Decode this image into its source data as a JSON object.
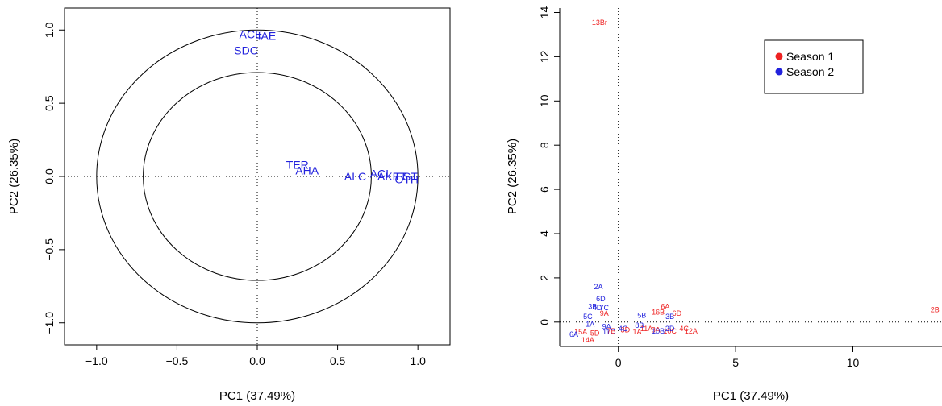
{
  "chart_data": [
    {
      "type": "scatter",
      "title": "",
      "xlabel": "PC1 (37.49%)",
      "ylabel": "PC2 (26.35%)",
      "xlim": [
        -1.2,
        1.2
      ],
      "ylim": [
        -1.15,
        1.15
      ],
      "xticks": [
        -1.0,
        -0.5,
        0.0,
        0.5,
        1.0
      ],
      "yticks": [
        -1.0,
        -0.5,
        0.0,
        0.5,
        1.0
      ],
      "xtick_labels": [
        "−1.0",
        "−0.5",
        "0.0",
        "0.5",
        "1.0"
      ],
      "ytick_labels": [
        "−1.0",
        "−0.5",
        "0.0",
        "0.5",
        "1.0"
      ],
      "circles": [
        1.0,
        0.71
      ],
      "reference_lines": {
        "x": 0,
        "y": 0,
        "style": "dotted"
      },
      "label_color": "#2222dd",
      "points": [
        {
          "label": "ACE",
          "x": -0.04,
          "y": 0.97
        },
        {
          "label": "IAE",
          "x": 0.06,
          "y": 0.96
        },
        {
          "label": "SDC",
          "x": -0.07,
          "y": 0.86
        },
        {
          "label": "TER",
          "x": 0.25,
          "y": 0.08
        },
        {
          "label": "AHA",
          "x": 0.31,
          "y": 0.04
        },
        {
          "label": "ALC",
          "x": 0.61,
          "y": 0.0
        },
        {
          "label": "ACI",
          "x": 0.76,
          "y": 0.02
        },
        {
          "label": "AKET",
          "x": 0.84,
          "y": 0.0
        },
        {
          "label": "EST",
          "x": 0.93,
          "y": 0.0
        },
        {
          "label": "OTH",
          "x": 0.93,
          "y": -0.02
        }
      ]
    },
    {
      "type": "scatter",
      "title": "",
      "xlabel": "PC1 (37.49%)",
      "ylabel": "PC2 (26.35%)",
      "xlim": [
        -2.5,
        13.8
      ],
      "ylim": [
        -1.1,
        14.2
      ],
      "xticks": [
        0,
        5,
        10
      ],
      "yticks": [
        0,
        2,
        4,
        6,
        8,
        10,
        12,
        14
      ],
      "reference_lines": {
        "x": 0,
        "y": 0,
        "style": "dotted"
      },
      "legend": {
        "placement": "top-right-inner"
      },
      "series": [
        {
          "name": "Season 1",
          "color": "#ee2222",
          "points": [
            {
              "label": "13Br",
              "x": -0.8,
              "y": 13.55
            },
            {
              "label": "2B",
              "x": 13.5,
              "y": 0.55
            },
            {
              "label": "6A",
              "x": 2.0,
              "y": 0.7
            },
            {
              "label": "16B",
              "x": 1.7,
              "y": 0.45
            },
            {
              "label": "6D",
              "x": 2.5,
              "y": 0.4
            },
            {
              "label": "9A",
              "x": -0.6,
              "y": 0.4
            },
            {
              "label": "14A",
              "x": -1.3,
              "y": -0.8
            },
            {
              "label": "11A",
              "x": 1.2,
              "y": -0.3
            },
            {
              "label": "4C",
              "x": 2.8,
              "y": -0.3
            },
            {
              "label": "3D",
              "x": 0.3,
              "y": -0.35
            },
            {
              "label": "8A",
              "x": 1.6,
              "y": -0.35
            },
            {
              "label": "12A",
              "x": 3.1,
              "y": -0.4
            },
            {
              "label": "7B",
              "x": -0.3,
              "y": -0.4
            },
            {
              "label": "10C",
              "x": 2.2,
              "y": -0.4
            },
            {
              "label": "1A",
              "x": 0.8,
              "y": -0.45
            },
            {
              "label": "15A",
              "x": -1.6,
              "y": -0.45
            },
            {
              "label": "5D",
              "x": -1.0,
              "y": -0.5
            }
          ]
        },
        {
          "name": "Season 2",
          "color": "#2222dd",
          "points": [
            {
              "label": "2A",
              "x": -0.85,
              "y": 1.6
            },
            {
              "label": "6D",
              "x": -0.75,
              "y": 1.05
            },
            {
              "label": "3B",
              "x": -1.1,
              "y": 0.7
            },
            {
              "label": "7C",
              "x": -0.6,
              "y": 0.65
            },
            {
              "label": "4D",
              "x": -0.9,
              "y": 0.65
            },
            {
              "label": "5C",
              "x": -1.3,
              "y": 0.25
            },
            {
              "label": "5B",
              "x": 1.0,
              "y": 0.3
            },
            {
              "label": "3B",
              "x": 2.2,
              "y": 0.25
            },
            {
              "label": "8B",
              "x": 0.9,
              "y": -0.15
            },
            {
              "label": "1A",
              "x": -1.2,
              "y": -0.1
            },
            {
              "label": "9A",
              "x": -0.5,
              "y": -0.2
            },
            {
              "label": "4C",
              "x": 0.2,
              "y": -0.3
            },
            {
              "label": "2D",
              "x": 2.2,
              "y": -0.3
            },
            {
              "label": "6A",
              "x": -1.9,
              "y": -0.55
            },
            {
              "label": "10B",
              "x": 1.7,
              "y": -0.4
            },
            {
              "label": "11C",
              "x": -0.4,
              "y": -0.45
            }
          ]
        }
      ]
    }
  ]
}
